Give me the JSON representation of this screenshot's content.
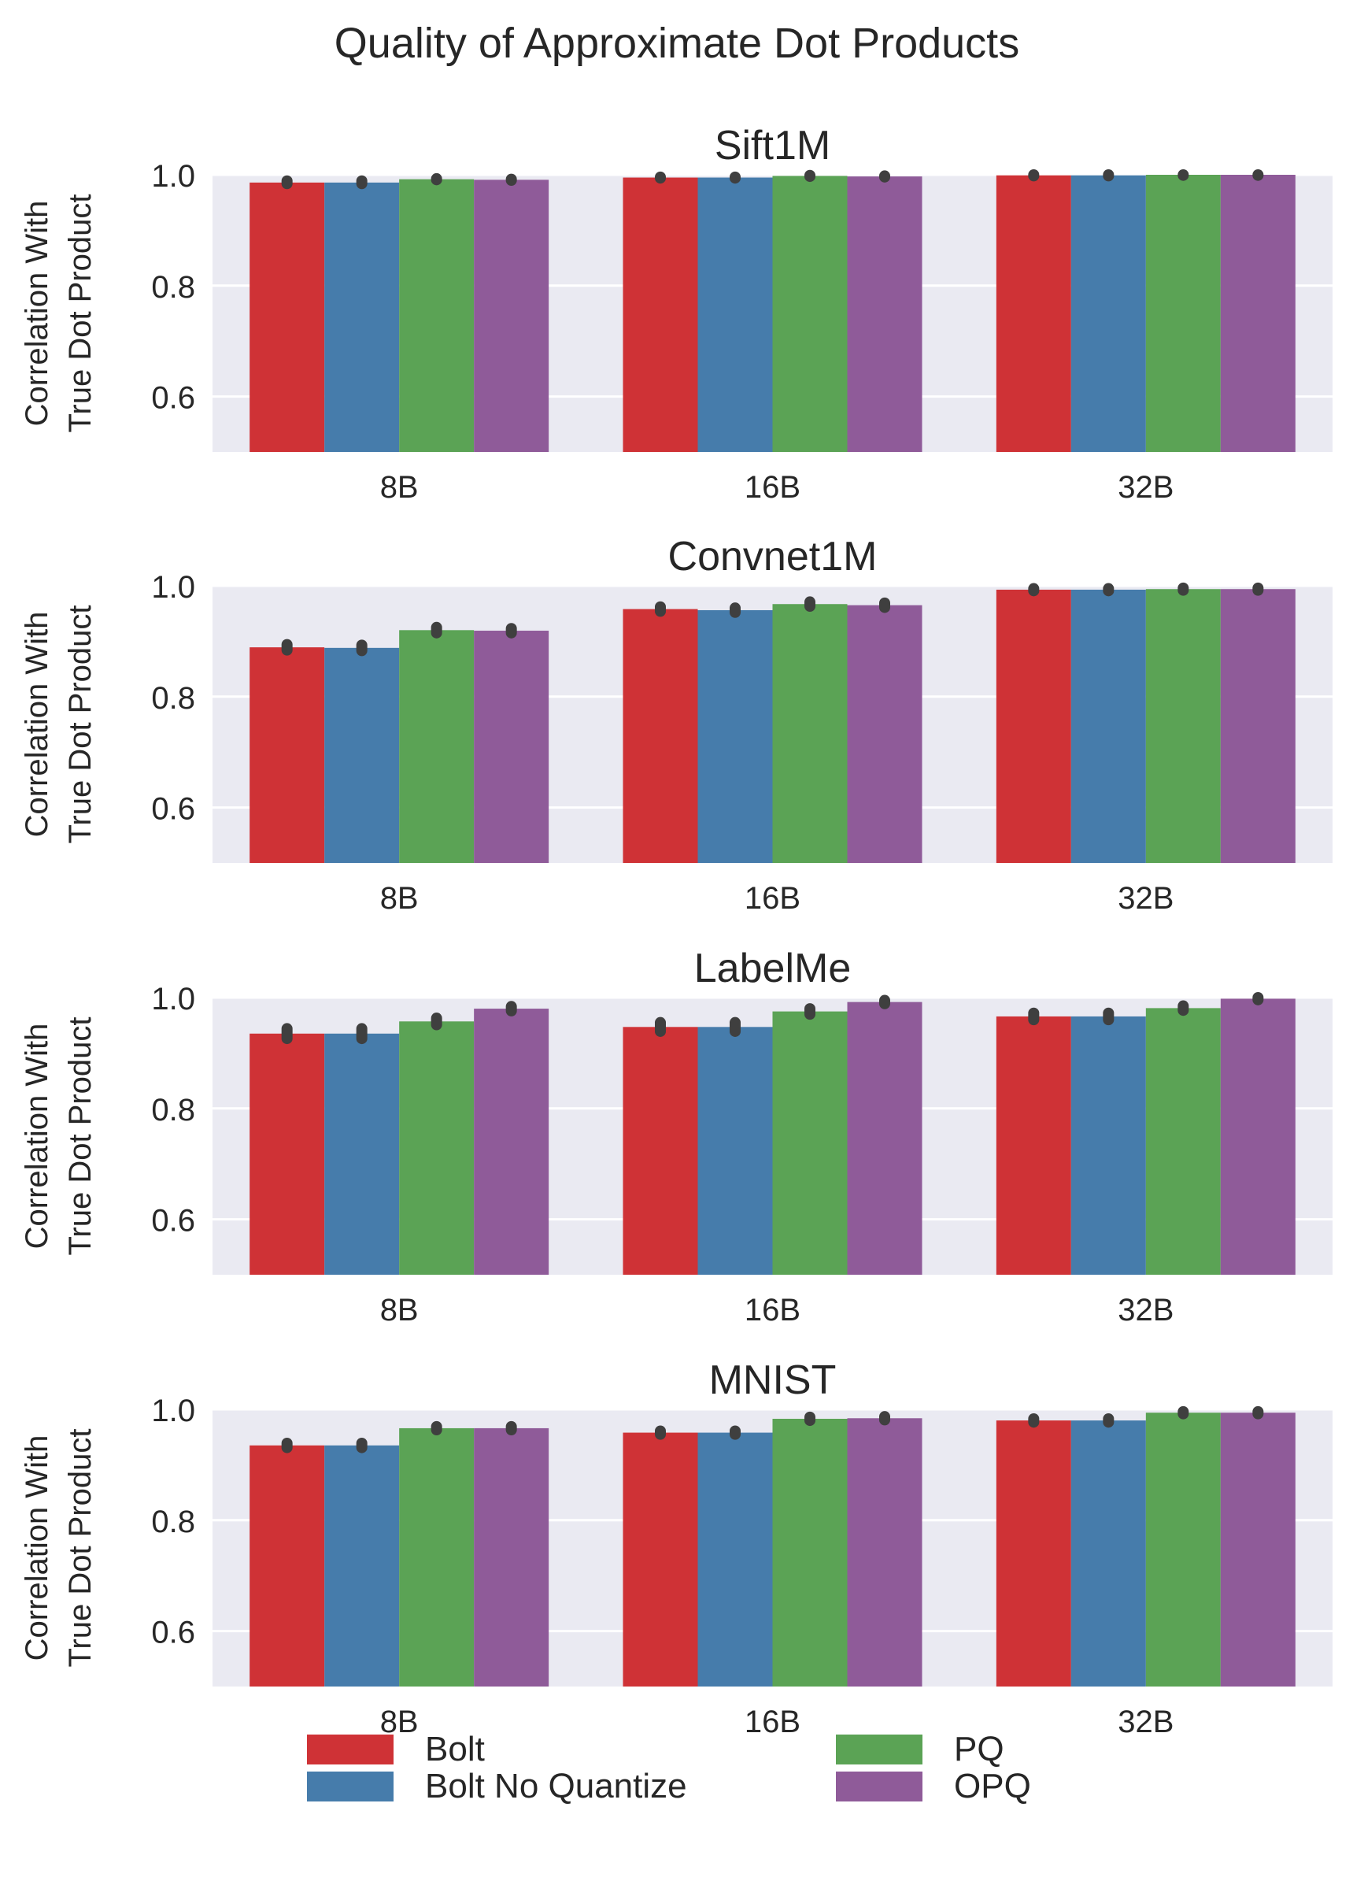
{
  "title": "Quality of Approximate Dot Products",
  "chart_data": {
    "type": "bar",
    "title": "Quality of Approximate Dot Products",
    "ylabel": "Correlation With\nTrue Dot Product",
    "ylim": [
      0.5,
      1.0
    ],
    "yticks": [
      0.6,
      0.8,
      1.0
    ],
    "categories": [
      "8B",
      "16B",
      "32B"
    ],
    "grid": true,
    "legend_position": "bottom",
    "legend": [
      "Bolt",
      "Bolt No Quantize",
      "PQ",
      "OPQ"
    ],
    "colors": {
      "Bolt": "#CF3236",
      "Bolt No Quantize": "#467CAB",
      "PQ": "#5BA355",
      "OPQ": "#8F5B99"
    },
    "panels": [
      {
        "title": "Sift1M",
        "series": [
          {
            "name": "Bolt",
            "values": [
              0.986,
              0.995,
              0.999
            ]
          },
          {
            "name": "Bolt No Quantize",
            "values": [
              0.986,
              0.995,
              0.999
            ]
          },
          {
            "name": "PQ",
            "values": [
              0.992,
              0.998,
              1.0
            ]
          },
          {
            "name": "OPQ",
            "values": [
              0.991,
              0.997,
              1.0
            ]
          }
        ],
        "error": [
          [
            [
              0.984,
              0.989
            ],
            [
              0.994,
              0.996
            ],
            [
              0.998,
              1.0
            ]
          ],
          [
            [
              0.984,
              0.989
            ],
            [
              0.994,
              0.996
            ],
            [
              0.998,
              1.0
            ]
          ],
          [
            [
              0.991,
              0.993
            ],
            [
              0.997,
              0.999
            ],
            [
              0.999,
              1.0
            ]
          ],
          [
            [
              0.99,
              0.992
            ],
            [
              0.996,
              0.998
            ],
            [
              0.999,
              1.0
            ]
          ]
        ]
      },
      {
        "title": "Convnet1M",
        "series": [
          {
            "name": "Bolt",
            "values": [
              0.889,
              0.958,
              0.993
            ]
          },
          {
            "name": "Bolt No Quantize",
            "values": [
              0.888,
              0.956,
              0.993
            ]
          },
          {
            "name": "PQ",
            "values": [
              0.92,
              0.967,
              0.994
            ]
          },
          {
            "name": "OPQ",
            "values": [
              0.919,
              0.965,
              0.994
            ]
          }
        ],
        "error": [
          [
            [
              0.884,
              0.894
            ],
            [
              0.954,
              0.962
            ],
            [
              0.991,
              0.995
            ]
          ],
          [
            [
              0.883,
              0.893
            ],
            [
              0.952,
              0.96
            ],
            [
              0.991,
              0.995
            ]
          ],
          [
            [
              0.915,
              0.925
            ],
            [
              0.963,
              0.971
            ],
            [
              0.992,
              0.996
            ]
          ],
          [
            [
              0.915,
              0.923
            ],
            [
              0.961,
              0.969
            ],
            [
              0.992,
              0.996
            ]
          ]
        ]
      },
      {
        "title": "LabelMe",
        "series": [
          {
            "name": "Bolt",
            "values": [
              0.935,
              0.947,
              0.966
            ]
          },
          {
            "name": "Bolt No Quantize",
            "values": [
              0.935,
              0.947,
              0.966
            ]
          },
          {
            "name": "PQ",
            "values": [
              0.957,
              0.975,
              0.981
            ]
          },
          {
            "name": "OPQ",
            "values": [
              0.98,
              0.992,
              0.998
            ]
          }
        ],
        "error": [
          [
            [
              0.926,
              0.944
            ],
            [
              0.939,
              0.955
            ],
            [
              0.96,
              0.972
            ]
          ],
          [
            [
              0.926,
              0.944
            ],
            [
              0.939,
              0.955
            ],
            [
              0.96,
              0.972
            ]
          ],
          [
            [
              0.951,
              0.963
            ],
            [
              0.97,
              0.98
            ],
            [
              0.977,
              0.985
            ]
          ],
          [
            [
              0.976,
              0.984
            ],
            [
              0.989,
              0.995
            ],
            [
              0.996,
              1.0
            ]
          ]
        ]
      },
      {
        "title": "MNIST",
        "series": [
          {
            "name": "Bolt",
            "values": [
              0.935,
              0.958,
              0.98
            ]
          },
          {
            "name": "Bolt No Quantize",
            "values": [
              0.935,
              0.958,
              0.98
            ]
          },
          {
            "name": "PQ",
            "values": [
              0.966,
              0.983,
              0.994
            ]
          },
          {
            "name": "OPQ",
            "values": [
              0.966,
              0.984,
              0.994
            ]
          }
        ],
        "error": [
          [
            [
              0.931,
              0.939
            ],
            [
              0.955,
              0.961
            ],
            [
              0.977,
              0.983
            ]
          ],
          [
            [
              0.931,
              0.939
            ],
            [
              0.955,
              0.961
            ],
            [
              0.977,
              0.983
            ]
          ],
          [
            [
              0.963,
              0.969
            ],
            [
              0.98,
              0.986
            ],
            [
              0.992,
              0.996
            ]
          ],
          [
            [
              0.963,
              0.969
            ],
            [
              0.981,
              0.987
            ],
            [
              0.992,
              0.996
            ]
          ]
        ]
      }
    ]
  }
}
